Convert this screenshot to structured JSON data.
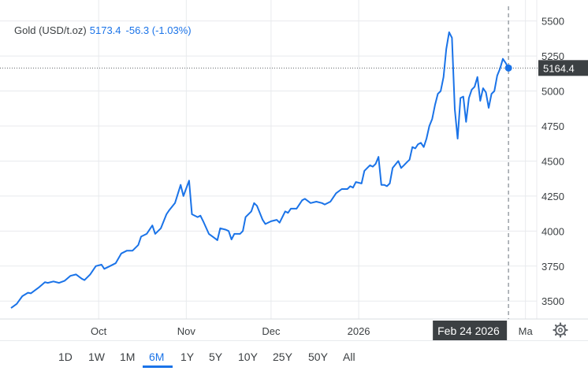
{
  "header": {
    "name": "Gold (USD/t.oz)",
    "value": "5173.4",
    "change": "-56.3 (-1.03%)"
  },
  "crosshair": {
    "price_label": "5164.4",
    "date_label": "Feb 24 2026",
    "next_month_label": "Ma"
  },
  "ranges": [
    "1D",
    "1W",
    "1M",
    "6M",
    "1Y",
    "5Y",
    "10Y",
    "25Y",
    "50Y",
    "All"
  ],
  "active_range": "6M",
  "colors": {
    "line": "#1a73e8",
    "label_bg": "#3c4043",
    "grid": "#e8eaed"
  },
  "chart_data": {
    "type": "line",
    "title": "Gold (USD/t.oz)",
    "x_tick_labels": [
      "Oct",
      "Nov",
      "Dec",
      "2026",
      "Ma"
    ],
    "x_tick_days": [
      31,
      62,
      92,
      123,
      182
    ],
    "y_ticks": [
      3500,
      3750,
      4000,
      4250,
      4500,
      4750,
      5000,
      5250,
      5500
    ],
    "ylim": [
      3400,
      5650
    ],
    "xlim_days": [
      0,
      186
    ],
    "grid": true,
    "crosshair_day": 176,
    "crosshair_value": 5164.4,
    "series": [
      {
        "values_by_day": [
          [
            0,
            3450
          ],
          [
            2,
            3480
          ],
          [
            4,
            3535
          ],
          [
            6,
            3560
          ],
          [
            7,
            3555
          ],
          [
            10,
            3600
          ],
          [
            12,
            3635
          ],
          [
            13,
            3630
          ],
          [
            15,
            3640
          ],
          [
            17,
            3630
          ],
          [
            19,
            3645
          ],
          [
            21,
            3680
          ],
          [
            23,
            3690
          ],
          [
            25,
            3660
          ],
          [
            26,
            3650
          ],
          [
            28,
            3690
          ],
          [
            30,
            3750
          ],
          [
            32,
            3760
          ],
          [
            33,
            3730
          ],
          [
            35,
            3750
          ],
          [
            37,
            3770
          ],
          [
            39,
            3840
          ],
          [
            41,
            3860
          ],
          [
            43,
            3860
          ],
          [
            45,
            3900
          ],
          [
            46,
            3960
          ],
          [
            48,
            3980
          ],
          [
            50,
            4040
          ],
          [
            51,
            3980
          ],
          [
            53,
            4020
          ],
          [
            55,
            4120
          ],
          [
            56,
            4150
          ],
          [
            58,
            4200
          ],
          [
            60,
            4330
          ],
          [
            61,
            4250
          ],
          [
            63,
            4360
          ],
          [
            64,
            4120
          ],
          [
            66,
            4100
          ],
          [
            67,
            4110
          ],
          [
            68,
            4070
          ],
          [
            70,
            3980
          ],
          [
            72,
            3950
          ],
          [
            73,
            3935
          ],
          [
            74,
            4020
          ],
          [
            76,
            4010
          ],
          [
            77,
            4000
          ],
          [
            78,
            3940
          ],
          [
            79,
            3980
          ],
          [
            81,
            3980
          ],
          [
            82,
            4000
          ],
          [
            83,
            4100
          ],
          [
            85,
            4140
          ],
          [
            86,
            4200
          ],
          [
            87,
            4180
          ],
          [
            89,
            4080
          ],
          [
            90,
            4050
          ],
          [
            92,
            4070
          ],
          [
            94,
            4080
          ],
          [
            95,
            4060
          ],
          [
            97,
            4140
          ],
          [
            98,
            4130
          ],
          [
            99,
            4160
          ],
          [
            101,
            4160
          ],
          [
            103,
            4220
          ],
          [
            104,
            4230
          ],
          [
            106,
            4200
          ],
          [
            108,
            4210
          ],
          [
            110,
            4200
          ],
          [
            111,
            4190
          ],
          [
            113,
            4210
          ],
          [
            115,
            4270
          ],
          [
            117,
            4300
          ],
          [
            119,
            4300
          ],
          [
            120,
            4320
          ],
          [
            121,
            4310
          ],
          [
            122,
            4350
          ],
          [
            124,
            4340
          ],
          [
            125,
            4430
          ],
          [
            127,
            4470
          ],
          [
            128,
            4460
          ],
          [
            129,
            4480
          ],
          [
            130,
            4530
          ],
          [
            131,
            4330
          ],
          [
            132,
            4330
          ],
          [
            133,
            4320
          ],
          [
            134,
            4340
          ],
          [
            135,
            4450
          ],
          [
            137,
            4500
          ],
          [
            138,
            4450
          ],
          [
            139,
            4470
          ],
          [
            140,
            4490
          ],
          [
            141,
            4510
          ],
          [
            142,
            4600
          ],
          [
            143,
            4590
          ],
          [
            144,
            4620
          ],
          [
            145,
            4630
          ],
          [
            146,
            4600
          ],
          [
            147,
            4660
          ],
          [
            148,
            4750
          ],
          [
            149,
            4800
          ],
          [
            150,
            4900
          ],
          [
            151,
            4980
          ],
          [
            152,
            5000
          ],
          [
            153,
            5100
          ],
          [
            154,
            5300
          ],
          [
            155,
            5420
          ],
          [
            156,
            5380
          ],
          [
            157,
            4870
          ],
          [
            158,
            4660
          ],
          [
            159,
            4950
          ],
          [
            160,
            4960
          ],
          [
            161,
            4780
          ],
          [
            162,
            4950
          ],
          [
            163,
            5010
          ],
          [
            164,
            5030
          ],
          [
            165,
            5100
          ],
          [
            166,
            4930
          ],
          [
            167,
            5020
          ],
          [
            168,
            4990
          ],
          [
            169,
            4880
          ],
          [
            170,
            4980
          ],
          [
            171,
            5000
          ],
          [
            172,
            5110
          ],
          [
            173,
            5160
          ],
          [
            174,
            5230
          ],
          [
            175,
            5200
          ],
          [
            176,
            5164.4
          ]
        ]
      }
    ]
  }
}
